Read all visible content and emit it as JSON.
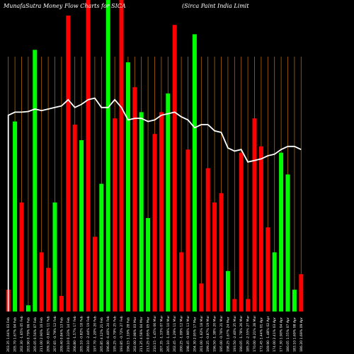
{
  "chart_data": {
    "type": "bar",
    "title_left": "MunafaSutra  Money Flow  Charts for SICA",
    "title_right": "(Sirca  Paint India  Limit",
    "categories": [
      "203.35 1.64% 03 Feb",
      "205.70 1.67% 04 Feb",
      "202.30 -1.65% 05 Feb",
      "203.90 0.79% 06 Feb",
      "205.05 0.56% 07 Feb",
      "211.00 2.90% 10 Feb",
      "209.30 -0.81% 11 Feb",
      "207.65 -0.79% 12 Feb",
      "209.40 0.84% 13 Feb",
      "210.10 0.33% 14 Feb",
      "206.80 -1.57% 17 Feb",
      "205.10 -0.82% 18 Feb",
      "200.10 -2.44% 19 Feb",
      "197.70 -1.20% 20 Feb",
      "205.85 4.12% 21 Feb",
      "196.80 -4.40% 24 Feb",
      "195.25 -0.79% 25 Feb",
      "193.85 -0.72% 27 Feb",
      "196.15 1.19% 28 Feb",
      "202.00 2.98% 03 Mar",
      "211.25 4.58% 04 Mar",
      "213.25 0.95% 05 Mar",
      "210.15 -1.45% 06 Mar",
      "207.35 -1.33% 07 Mar",
      "205.10 -1.09% 10 Mar",
      "202.45 -1.29% 11 Mar",
      "200.25 -1.09% 12 Mar",
      "198.45 -0.90% 13 Mar",
      "204.30 2.95% 17 Mar",
      "201.00 -1.62% 18 Mar",
      "199.25 -0.87% 19 Mar",
      "196.50 -1.38% 20 Mar",
      "195.00 -0.76% 21 Mar",
      "198.25 1.67% 24 Mar",
      "193.50 -2.40% 25 Mar",
      "190.05 -1.78% 26 Mar",
      "185.20 -2.55% 27 Mar",
      "170.00 -8.21% 28 Mar",
      "172.45 1.44% 01 Apr",
      "169.90 -1.48% 02 Apr",
      "174.00 2.41% 03 Apr",
      "177.30 1.90% 04 Apr",
      "180.05 1.55% 07 Apr",
      "183.10 1.69% 08 Apr",
      "186.20 1.69% 09 Apr"
    ],
    "bar_colors": [
      "red",
      "green",
      "red",
      "green",
      "green",
      "red",
      "red",
      "green",
      "red",
      "red",
      "red",
      "green",
      "red",
      "red",
      "green",
      "green",
      "red",
      "red",
      "green",
      "red",
      "green",
      "green",
      "red",
      "red",
      "green",
      "red",
      "red",
      "red",
      "green",
      "red",
      "red",
      "red",
      "red",
      "green",
      "red",
      "red",
      "red",
      "red",
      "red",
      "red",
      "green",
      "green",
      "green",
      "green",
      "red"
    ],
    "bar_values": [
      7,
      61,
      35,
      2,
      84,
      19,
      14,
      35,
      5,
      95,
      60,
      55,
      100,
      24,
      41,
      100,
      62,
      100,
      80,
      72,
      64,
      30,
      57,
      64,
      70,
      92,
      19,
      52,
      89,
      9,
      46,
      35,
      38,
      13,
      4,
      51,
      4,
      62,
      53,
      27,
      19,
      51,
      44,
      7,
      12
    ],
    "line_values": [
      63,
      64,
      64,
      64.2,
      65,
      64.5,
      65,
      65.5,
      66,
      68,
      65.5,
      66.5,
      68,
      68.5,
      65.5,
      65.5,
      68,
      65.5,
      61.5,
      62,
      62,
      61,
      61.5,
      63,
      63.5,
      64,
      62.5,
      61.5,
      59,
      60,
      60,
      58,
      57.5,
      52.5,
      51.5,
      52,
      48,
      48.5,
      49,
      50,
      50.5,
      52,
      53,
      53,
      52
    ],
    "bar_ylim": [
      0,
      100
    ],
    "line_ylim": [
      0,
      100
    ],
    "colors": {
      "background": "#000000",
      "up_bar": "#00ff00",
      "down_bar": "#ff0000",
      "grid": "#b06a00",
      "line": "#ffffff",
      "text": "#ffffff"
    }
  }
}
